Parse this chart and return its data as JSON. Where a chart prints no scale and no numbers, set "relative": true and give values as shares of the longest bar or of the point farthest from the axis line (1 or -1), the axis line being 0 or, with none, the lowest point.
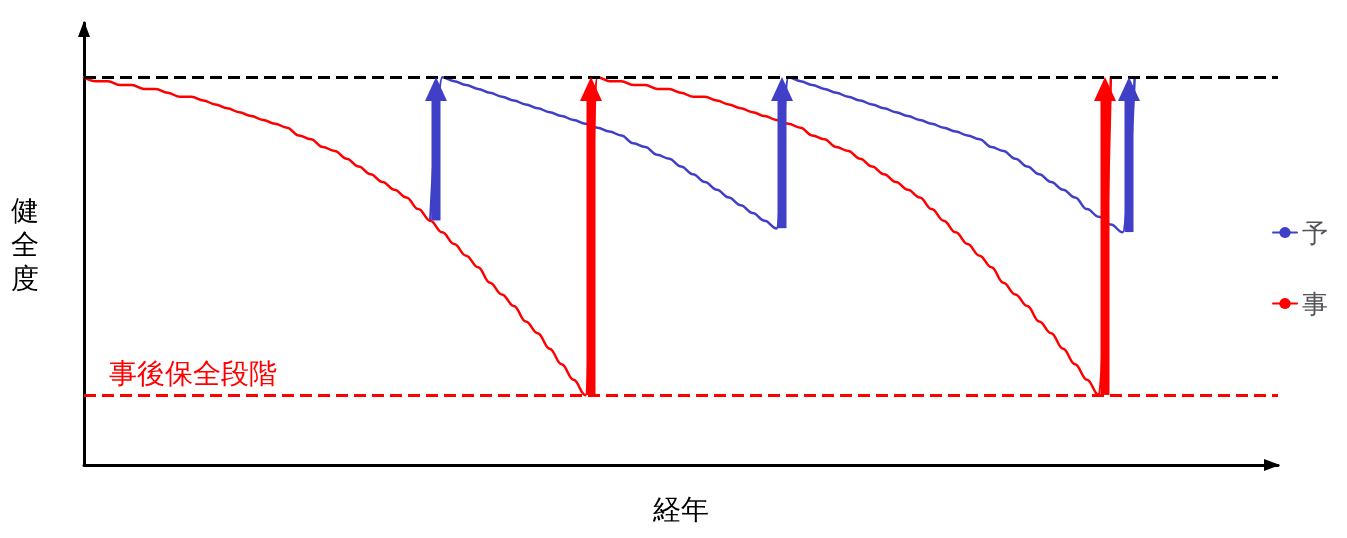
{
  "chart_data": {
    "type": "line",
    "relative": true,
    "xlabel": "経年",
    "ylabel": "健全度",
    "categories": [
      null,
      null,
      null,
      null,
      null,
      null,
      null,
      null,
      null,
      null,
      null,
      null,
      null,
      null,
      null,
      null,
      null,
      null,
      null,
      null,
      null,
      null,
      null,
      null,
      null,
      null,
      null,
      null,
      null,
      null,
      null,
      null,
      null,
      null,
      null,
      null,
      null,
      null,
      null,
      null,
      null,
      null,
      null,
      null,
      null,
      null,
      null,
      null,
      null,
      null,
      null,
      null,
      null,
      null,
      null,
      null,
      null,
      null,
      null,
      null,
      null,
      null,
      null,
      null,
      null,
      null,
      null,
      null,
      null,
      null,
      null,
      null,
      null,
      null,
      null,
      null,
      null,
      null,
      null,
      null,
      null,
      null,
      null,
      null,
      null,
      null,
      null,
      null,
      null,
      null,
      null,
      null,
      null,
      null,
      null,
      null,
      null,
      null,
      null,
      null
    ],
    "series": [
      {
        "name": "予",
        "color": "#3f3fc8",
        "values": [
          null,
          null,
          null,
          null,
          null,
          null,
          null,
          null,
          null,
          null,
          null,
          null,
          null,
          null,
          null,
          null,
          null,
          null,
          null,
          null,
          null,
          null,
          null,
          null,
          null,
          null,
          null,
          null,
          null,
          0.63,
          1.0,
          0.99,
          0.98,
          0.97,
          0.96,
          0.95,
          0.94,
          0.93,
          0.92,
          0.91,
          0.9,
          0.89,
          0.88,
          0.87,
          0.86,
          0.85,
          0.83,
          0.82,
          0.8,
          0.79,
          0.77,
          0.75,
          0.73,
          0.71,
          0.69,
          0.67,
          0.65,
          0.63,
          0.61,
          1.0,
          0.99,
          0.98,
          0.97,
          0.96,
          0.95,
          0.94,
          0.93,
          0.92,
          0.91,
          0.9,
          0.89,
          0.88,
          0.87,
          0.86,
          0.85,
          0.84,
          0.82,
          0.81,
          0.79,
          0.77,
          0.75,
          0.73,
          0.71,
          0.69,
          0.66,
          0.64,
          0.62,
          0.6,
          1.0,
          null,
          null,
          null,
          null,
          null,
          null,
          null,
          null,
          null,
          null,
          null
        ]
      },
      {
        "name": "事",
        "color": "#ff0000",
        "values": [
          1.0,
          0.99,
          0.99,
          0.98,
          0.98,
          0.97,
          0.97,
          0.96,
          0.95,
          0.95,
          0.94,
          0.93,
          0.92,
          0.91,
          0.9,
          0.89,
          0.88,
          0.87,
          0.85,
          0.84,
          0.82,
          0.81,
          0.79,
          0.77,
          0.75,
          0.73,
          0.71,
          0.69,
          0.66,
          0.63,
          0.6,
          0.57,
          0.54,
          0.51,
          0.47,
          0.44,
          0.41,
          0.37,
          0.34,
          0.3,
          0.26,
          0.22,
          0.18,
          1.0,
          0.99,
          0.99,
          0.98,
          0.98,
          0.97,
          0.97,
          0.96,
          0.95,
          0.95,
          0.94,
          0.93,
          0.92,
          0.91,
          0.9,
          0.89,
          0.88,
          0.87,
          0.85,
          0.84,
          0.82,
          0.81,
          0.79,
          0.77,
          0.75,
          0.73,
          0.71,
          0.69,
          0.66,
          0.63,
          0.6,
          0.57,
          0.54,
          0.51,
          0.47,
          0.44,
          0.41,
          0.37,
          0.34,
          0.3,
          0.26,
          0.22,
          0.18,
          1.0,
          null,
          null,
          null,
          null,
          null,
          null,
          null,
          null,
          null,
          null,
          null,
          null,
          null
        ]
      }
    ],
    "ref_lines": [
      {
        "axis": "y",
        "value": 1.0,
        "label": null,
        "color": "#000000",
        "line_style": "dashed"
      },
      {
        "axis": "y",
        "value": 0.18,
        "label": "事後保全段階",
        "color": "#ff0000",
        "line_style": "dashed"
      }
    ],
    "legend": "right",
    "grid": false,
    "marker": "none",
    "line_style": "solid"
  }
}
